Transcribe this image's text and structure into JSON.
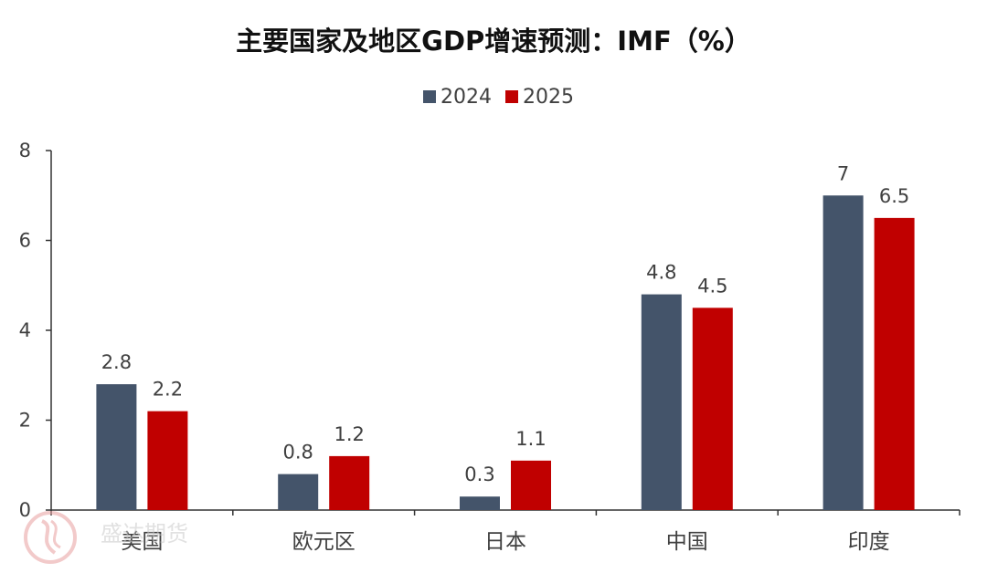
{
  "chart_data": {
    "type": "bar",
    "title": "主要国家及地区GDP增速预测：IMF（%）",
    "categories": [
      "美国",
      "欧元区",
      "日本",
      "中国",
      "印度"
    ],
    "series": [
      {
        "name": "2024",
        "color": "#44546a",
        "values": [
          2.8,
          0.8,
          0.3,
          4.8,
          7
        ]
      },
      {
        "name": "2025",
        "color": "#c00000",
        "values": [
          2.2,
          1.2,
          1.1,
          4.5,
          6.5
        ]
      }
    ],
    "data_labels": [
      [
        "2.8",
        "0.8",
        "0.3",
        "4.8",
        "7"
      ],
      [
        "2.2",
        "1.2",
        "1.1",
        "4.5",
        "6.5"
      ]
    ],
    "y_ticks": [
      "0",
      "2",
      "4",
      "6",
      "8"
    ],
    "ylim": [
      0,
      8
    ],
    "grid": false,
    "legend_position": "top-center"
  },
  "watermark": {
    "text": "盛达期货",
    "icon": "company-logo-icon",
    "color": "#e8a0a0"
  }
}
